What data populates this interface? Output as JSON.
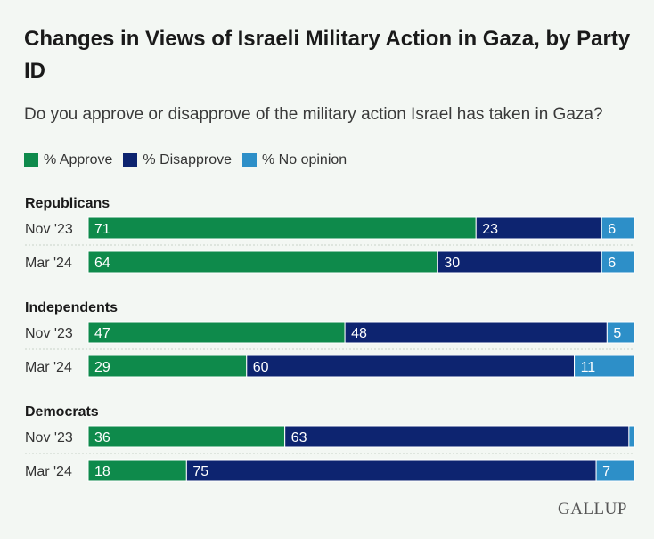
{
  "title": "Changes in Views of Israeli Military Action in Gaza, by Party ID",
  "subtitle": "Do you approve or disapprove of the military action Israel has taken in Gaza?",
  "brand": "GALLUP",
  "colors": {
    "approve": "#0e8a4b",
    "disapprove": "#0d2470",
    "no_opinion": "#2d8fc8",
    "background": "#f3f7f3"
  },
  "legend": [
    {
      "label": "% Approve",
      "color": "#0e8a4b"
    },
    {
      "label": "% Disapprove",
      "color": "#0d2470"
    },
    {
      "label": "% No opinion",
      "color": "#2d8fc8"
    }
  ],
  "chart_data": {
    "type": "bar",
    "orientation": "horizontal",
    "stacked": true,
    "xlim": [
      0,
      100
    ],
    "series_names": [
      "% Approve",
      "% Disapprove",
      "% No opinion"
    ],
    "groups": [
      {
        "name": "Republicans",
        "rows": [
          {
            "label": "Nov '23",
            "values": [
              71,
              23,
              6
            ],
            "labels": [
              "71",
              "23",
              "6"
            ]
          },
          {
            "label": "Mar '24",
            "values": [
              64,
              30,
              6
            ],
            "labels": [
              "64",
              "30",
              "6"
            ]
          }
        ]
      },
      {
        "name": "Independents",
        "rows": [
          {
            "label": "Nov '23",
            "values": [
              47,
              48,
              5
            ],
            "labels": [
              "47",
              "48",
              "5"
            ]
          },
          {
            "label": "Mar '24",
            "values": [
              29,
              60,
              11
            ],
            "labels": [
              "29",
              "60",
              "11"
            ]
          }
        ]
      },
      {
        "name": "Democrats",
        "rows": [
          {
            "label": "Nov '23",
            "values": [
              36,
              63,
              1
            ],
            "labels": [
              "36",
              "63",
              ""
            ]
          },
          {
            "label": "Mar '24",
            "values": [
              18,
              75,
              7
            ],
            "labels": [
              "18",
              "75",
              "7"
            ]
          }
        ]
      }
    ]
  }
}
